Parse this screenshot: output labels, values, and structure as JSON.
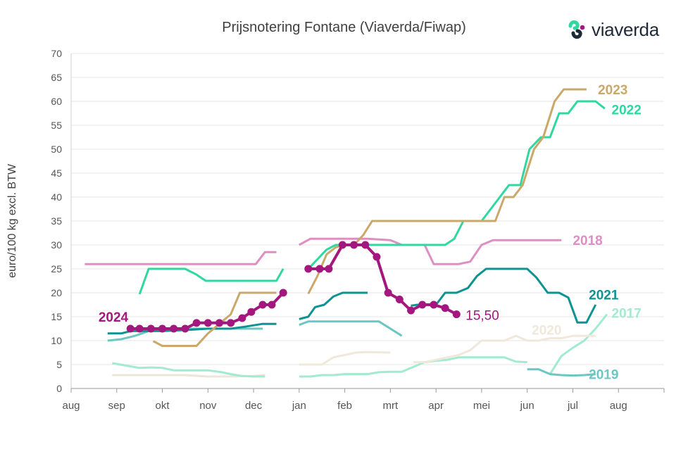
{
  "chart_data": {
    "type": "line",
    "title": "Prijsnotering Fontane (Viaverda/Fiwap)",
    "brand": "viaverda",
    "ylabel": "euro/100 kg excl. BTW",
    "xlabel": "",
    "ylim": [
      0,
      70
    ],
    "yticks": [
      0,
      5,
      10,
      15,
      20,
      25,
      30,
      35,
      40,
      45,
      50,
      55,
      60,
      65,
      70
    ],
    "x_tick_labels": [
      "aug",
      "sep",
      "okt",
      "nov",
      "dec",
      "jan",
      "feb",
      "mrt",
      "apr",
      "mei",
      "jun",
      "jul",
      "aug"
    ],
    "x_unit": "months since 1 August of the season start (0 = aug, 12 = aug next year)",
    "grid": "horizontal",
    "series": [
      {
        "name": "2024",
        "color": "#a3177e",
        "markers": true,
        "end_annotation": "15,50",
        "points": [
          [
            1.3,
            12.5
          ],
          [
            1.5,
            12.5
          ],
          [
            1.75,
            12.5
          ],
          [
            2.0,
            12.5
          ],
          [
            2.25,
            12.5
          ],
          [
            2.5,
            12.5
          ],
          [
            2.75,
            13.7
          ],
          [
            3.0,
            13.7
          ],
          [
            3.25,
            13.7
          ],
          [
            3.5,
            13.7
          ],
          [
            3.75,
            14.7
          ],
          [
            3.95,
            16.0
          ],
          [
            4.2,
            17.5
          ],
          [
            4.4,
            17.5
          ],
          [
            4.65,
            20.0
          ],
          null,
          [
            5.2,
            25.0
          ],
          [
            5.45,
            25.0
          ],
          [
            5.65,
            25.0
          ],
          [
            5.95,
            30.0
          ],
          [
            6.2,
            30.0
          ],
          [
            6.45,
            30.0
          ],
          [
            6.7,
            27.5
          ],
          [
            6.95,
            20.0
          ],
          [
            7.2,
            18.6
          ],
          [
            7.45,
            16.3
          ],
          [
            7.7,
            17.5
          ],
          [
            7.95,
            17.5
          ],
          [
            8.2,
            16.8
          ],
          [
            8.45,
            15.5
          ]
        ]
      },
      {
        "name": "2023",
        "color": "#c9a86a",
        "points": [
          [
            1.8,
            9.9
          ],
          [
            2.0,
            8.9
          ],
          [
            2.25,
            8.9
          ],
          [
            2.5,
            8.9
          ],
          [
            2.75,
            8.9
          ],
          [
            3.0,
            11.5
          ],
          [
            3.25,
            13.5
          ],
          [
            3.5,
            15.5
          ],
          [
            3.7,
            20.0
          ],
          [
            4.0,
            20.0
          ],
          [
            4.3,
            20.0
          ],
          [
            4.5,
            20.0
          ],
          null,
          [
            5.2,
            19.8
          ],
          [
            5.4,
            23.5
          ],
          [
            5.6,
            28.0
          ],
          [
            5.8,
            29.5
          ],
          [
            6.0,
            30.0
          ],
          [
            6.2,
            30.0
          ],
          [
            6.4,
            32.0
          ],
          [
            6.6,
            35.0
          ],
          [
            7.0,
            35.0
          ],
          [
            7.5,
            35.0
          ],
          [
            8.0,
            35.0
          ],
          [
            8.5,
            35.0
          ],
          [
            9.0,
            35.0
          ],
          [
            9.3,
            35.0
          ],
          [
            9.5,
            40.0
          ],
          [
            9.7,
            40.0
          ],
          [
            9.9,
            42.5
          ],
          [
            10.15,
            50.0
          ],
          [
            10.35,
            52.5
          ],
          [
            10.6,
            60.0
          ],
          [
            10.8,
            62.5
          ],
          [
            11.0,
            62.5
          ],
          [
            11.3,
            62.5
          ]
        ]
      },
      {
        "name": "2022",
        "color": "#2ed8a0",
        "points": [
          [
            1.5,
            19.7
          ],
          [
            1.7,
            25.0
          ],
          [
            2.0,
            25.0
          ],
          [
            2.25,
            25.0
          ],
          [
            2.5,
            25.0
          ],
          [
            2.75,
            23.8
          ],
          [
            2.95,
            22.5
          ],
          [
            3.25,
            22.5
          ],
          [
            3.5,
            22.5
          ],
          [
            4.0,
            22.5
          ],
          [
            4.3,
            22.5
          ],
          [
            4.5,
            22.5
          ],
          [
            4.65,
            25.0
          ],
          null,
          [
            5.2,
            25.0
          ],
          [
            5.4,
            27.0
          ],
          [
            5.6,
            29.0
          ],
          [
            5.8,
            30.0
          ],
          [
            6.2,
            30.0
          ],
          [
            6.6,
            30.0
          ],
          [
            7.0,
            30.0
          ],
          [
            7.5,
            30.0
          ],
          [
            8.0,
            30.0
          ],
          [
            8.2,
            30.0
          ],
          [
            8.4,
            31.3
          ],
          [
            8.6,
            35.0
          ],
          [
            8.8,
            35.0
          ],
          [
            9.0,
            35.0
          ],
          [
            9.2,
            37.5
          ],
          [
            9.4,
            40.0
          ],
          [
            9.6,
            42.5
          ],
          [
            9.85,
            42.5
          ],
          [
            10.05,
            50.0
          ],
          [
            10.3,
            52.5
          ],
          [
            10.5,
            52.5
          ],
          [
            10.7,
            57.5
          ],
          [
            10.9,
            57.5
          ],
          [
            11.1,
            60.0
          ],
          [
            11.3,
            60.0
          ],
          [
            11.5,
            60.0
          ],
          [
            11.7,
            58.5
          ]
        ]
      },
      {
        "name": "2021",
        "color": "#0f9292",
        "points": [
          [
            0.8,
            11.5
          ],
          [
            1.1,
            11.5
          ],
          [
            1.3,
            12.0
          ],
          [
            1.5,
            12.0
          ],
          [
            2.0,
            12.0
          ],
          [
            2.5,
            12.2
          ],
          [
            3.0,
            12.5
          ],
          [
            3.5,
            12.5
          ],
          [
            3.8,
            12.9
          ],
          [
            4.2,
            13.5
          ],
          [
            4.5,
            13.5
          ],
          null,
          [
            5.0,
            14.5
          ],
          [
            5.2,
            15.0
          ],
          [
            5.35,
            17.0
          ],
          [
            5.55,
            17.5
          ],
          [
            5.75,
            19.2
          ],
          [
            5.95,
            20.0
          ],
          [
            6.2,
            20.0
          ],
          [
            6.5,
            20.0
          ],
          null,
          [
            7.45,
            17.3
          ],
          [
            7.6,
            17.5
          ],
          [
            7.8,
            17.5
          ],
          [
            8.0,
            17.5
          ],
          [
            8.2,
            20.0
          ],
          [
            8.45,
            20.0
          ],
          [
            8.7,
            21.0
          ],
          [
            8.9,
            23.5
          ],
          [
            9.1,
            25.0
          ],
          [
            9.4,
            25.0
          ],
          [
            9.7,
            25.0
          ],
          [
            10.0,
            25.0
          ],
          [
            10.2,
            23.2
          ],
          [
            10.45,
            20.0
          ],
          [
            10.7,
            20.0
          ],
          [
            10.9,
            19.0
          ],
          [
            11.1,
            13.8
          ],
          [
            11.3,
            13.8
          ],
          [
            11.5,
            17.5
          ]
        ]
      },
      {
        "name": "2020",
        "color": "#efe8db",
        "points": [
          [
            5.0,
            5.0
          ],
          [
            5.5,
            5.0
          ],
          [
            5.75,
            6.5
          ],
          [
            6.0,
            7.0
          ],
          [
            6.25,
            7.5
          ],
          [
            6.5,
            7.6
          ],
          [
            7.0,
            7.5
          ],
          null,
          [
            7.5,
            5.5
          ],
          [
            7.75,
            5.5
          ],
          [
            8.0,
            6.0
          ],
          [
            8.25,
            6.5
          ],
          [
            8.5,
            7.0
          ],
          [
            8.75,
            8.0
          ],
          [
            9.0,
            10.0
          ],
          [
            9.25,
            10.0
          ],
          [
            9.5,
            10.0
          ],
          [
            9.75,
            11.0
          ],
          [
            10.0,
            10.0
          ],
          [
            10.25,
            10.0
          ],
          [
            10.5,
            10.5
          ],
          [
            10.75,
            10.5
          ],
          [
            11.0,
            11.0
          ],
          [
            11.25,
            11.0
          ],
          [
            11.5,
            11.0
          ]
        ]
      },
      {
        "name": "2019",
        "color": "#6cc6c4",
        "points": [
          [
            0.8,
            10.0
          ],
          [
            1.1,
            10.3
          ],
          [
            1.4,
            11.0
          ],
          [
            1.7,
            12.0
          ],
          [
            2.0,
            12.5
          ],
          [
            2.5,
            12.5
          ],
          [
            3.0,
            12.5
          ],
          [
            3.5,
            12.5
          ],
          [
            4.0,
            12.5
          ],
          [
            4.2,
            12.5
          ],
          null,
          [
            5.0,
            13.3
          ],
          [
            5.2,
            14.0
          ],
          [
            5.5,
            14.0
          ],
          [
            6.0,
            14.0
          ],
          [
            6.5,
            14.0
          ],
          [
            6.75,
            14.0
          ],
          [
            7.0,
            12.5
          ],
          [
            7.25,
            11.0
          ],
          null,
          [
            10.0,
            4.0
          ],
          [
            10.25,
            4.0
          ],
          [
            10.5,
            3.0
          ],
          [
            10.75,
            2.8
          ],
          [
            11.0,
            2.7
          ],
          [
            11.25,
            2.8
          ],
          [
            11.5,
            3.0
          ]
        ]
      },
      {
        "name": "2018",
        "color": "#dd8fc3",
        "points": [
          [
            0.3,
            26.0
          ],
          [
            0.8,
            26.0
          ],
          [
            1.3,
            26.0
          ],
          [
            1.8,
            26.0
          ],
          [
            2.3,
            26.0
          ],
          [
            2.8,
            26.0
          ],
          [
            3.3,
            26.0
          ],
          [
            3.85,
            26.0
          ],
          [
            4.05,
            26.0
          ],
          [
            4.25,
            28.5
          ],
          [
            4.5,
            28.5
          ],
          null,
          [
            5.0,
            30.0
          ],
          [
            5.25,
            31.3
          ],
          [
            5.5,
            31.3
          ],
          [
            6.0,
            31.3
          ],
          [
            6.5,
            31.3
          ],
          [
            7.0,
            31.0
          ],
          [
            7.25,
            30.0
          ],
          [
            7.5,
            30.0
          ],
          [
            7.75,
            30.0
          ],
          [
            7.95,
            26.0
          ],
          [
            8.25,
            26.0
          ],
          [
            8.5,
            26.0
          ],
          [
            8.75,
            26.5
          ],
          [
            9.0,
            30.0
          ],
          [
            9.25,
            31.0
          ],
          [
            9.5,
            31.0
          ],
          [
            10.0,
            31.0
          ],
          [
            10.5,
            31.0
          ],
          [
            10.75,
            31.0
          ]
        ]
      },
      {
        "name": "2017",
        "color": "#a2ead0",
        "points": [
          [
            0.9,
            5.3
          ],
          [
            1.2,
            4.8
          ],
          [
            1.5,
            4.3
          ],
          [
            1.75,
            4.4
          ],
          [
            2.0,
            4.3
          ],
          [
            2.25,
            3.8
          ],
          [
            2.5,
            3.8
          ],
          [
            2.75,
            3.8
          ],
          [
            3.0,
            3.8
          ],
          [
            3.3,
            3.4
          ],
          [
            3.5,
            3.0
          ],
          [
            3.75,
            2.6
          ],
          [
            4.0,
            2.5
          ],
          [
            4.25,
            2.5
          ],
          null,
          [
            5.0,
            2.5
          ],
          [
            5.25,
            2.5
          ],
          [
            5.5,
            2.8
          ],
          [
            5.75,
            2.8
          ],
          [
            6.0,
            3.0
          ],
          [
            6.25,
            3.0
          ],
          [
            6.5,
            3.0
          ],
          [
            6.75,
            3.4
          ],
          [
            7.0,
            3.5
          ],
          [
            7.25,
            3.5
          ],
          [
            7.5,
            4.5
          ],
          [
            7.75,
            5.5
          ],
          [
            8.0,
            5.8
          ],
          [
            8.25,
            6.0
          ],
          [
            8.5,
            6.5
          ],
          [
            8.75,
            6.5
          ],
          [
            9.0,
            6.5
          ],
          [
            9.25,
            6.5
          ],
          [
            9.5,
            6.5
          ],
          [
            9.75,
            5.6
          ],
          [
            10.0,
            5.5
          ],
          null,
          [
            10.5,
            3.0
          ],
          [
            10.75,
            6.8
          ],
          [
            11.0,
            8.5
          ],
          [
            11.25,
            10.0
          ],
          [
            11.5,
            12.5
          ],
          [
            11.75,
            15.5
          ]
        ]
      },
      {
        "name": "",
        "color": "#ede5d8",
        "points": [
          [
            0.9,
            2.8
          ],
          [
            1.5,
            2.8
          ],
          [
            2.0,
            2.8
          ],
          [
            2.5,
            2.8
          ],
          [
            3.0,
            2.5
          ],
          [
            3.5,
            2.5
          ],
          [
            4.0,
            2.6
          ],
          [
            4.25,
            2.8
          ]
        ]
      }
    ],
    "labels": [
      {
        "text": "2024",
        "color": "#a3177e",
        "x": 0.6,
        "y": 15.0,
        "anchor": "start"
      },
      {
        "text": "15,50",
        "color": "#a3177e",
        "x": 8.65,
        "y": 15.4,
        "anchor": "start",
        "bold": false
      },
      {
        "text": "2023",
        "color": "#c9a86a",
        "x": 11.55,
        "y": 62.5,
        "anchor": "start"
      },
      {
        "text": "2022",
        "color": "#2ed8a0",
        "x": 11.85,
        "y": 58.3,
        "anchor": "start"
      },
      {
        "text": "2018",
        "color": "#dd8fc3",
        "x": 11.0,
        "y": 31.0,
        "anchor": "start"
      },
      {
        "text": "2021",
        "color": "#0f9292",
        "x": 11.35,
        "y": 19.6,
        "anchor": "start"
      },
      {
        "text": "2017",
        "color": "#a2ead0",
        "x": 11.85,
        "y": 15.8,
        "anchor": "start"
      },
      {
        "text": "2020",
        "color": "#efe8db",
        "x": 10.1,
        "y": 12.3,
        "anchor": "start"
      },
      {
        "text": "2019",
        "color": "#6cc6c4",
        "x": 11.35,
        "y": 3.0,
        "anchor": "start"
      }
    ]
  }
}
